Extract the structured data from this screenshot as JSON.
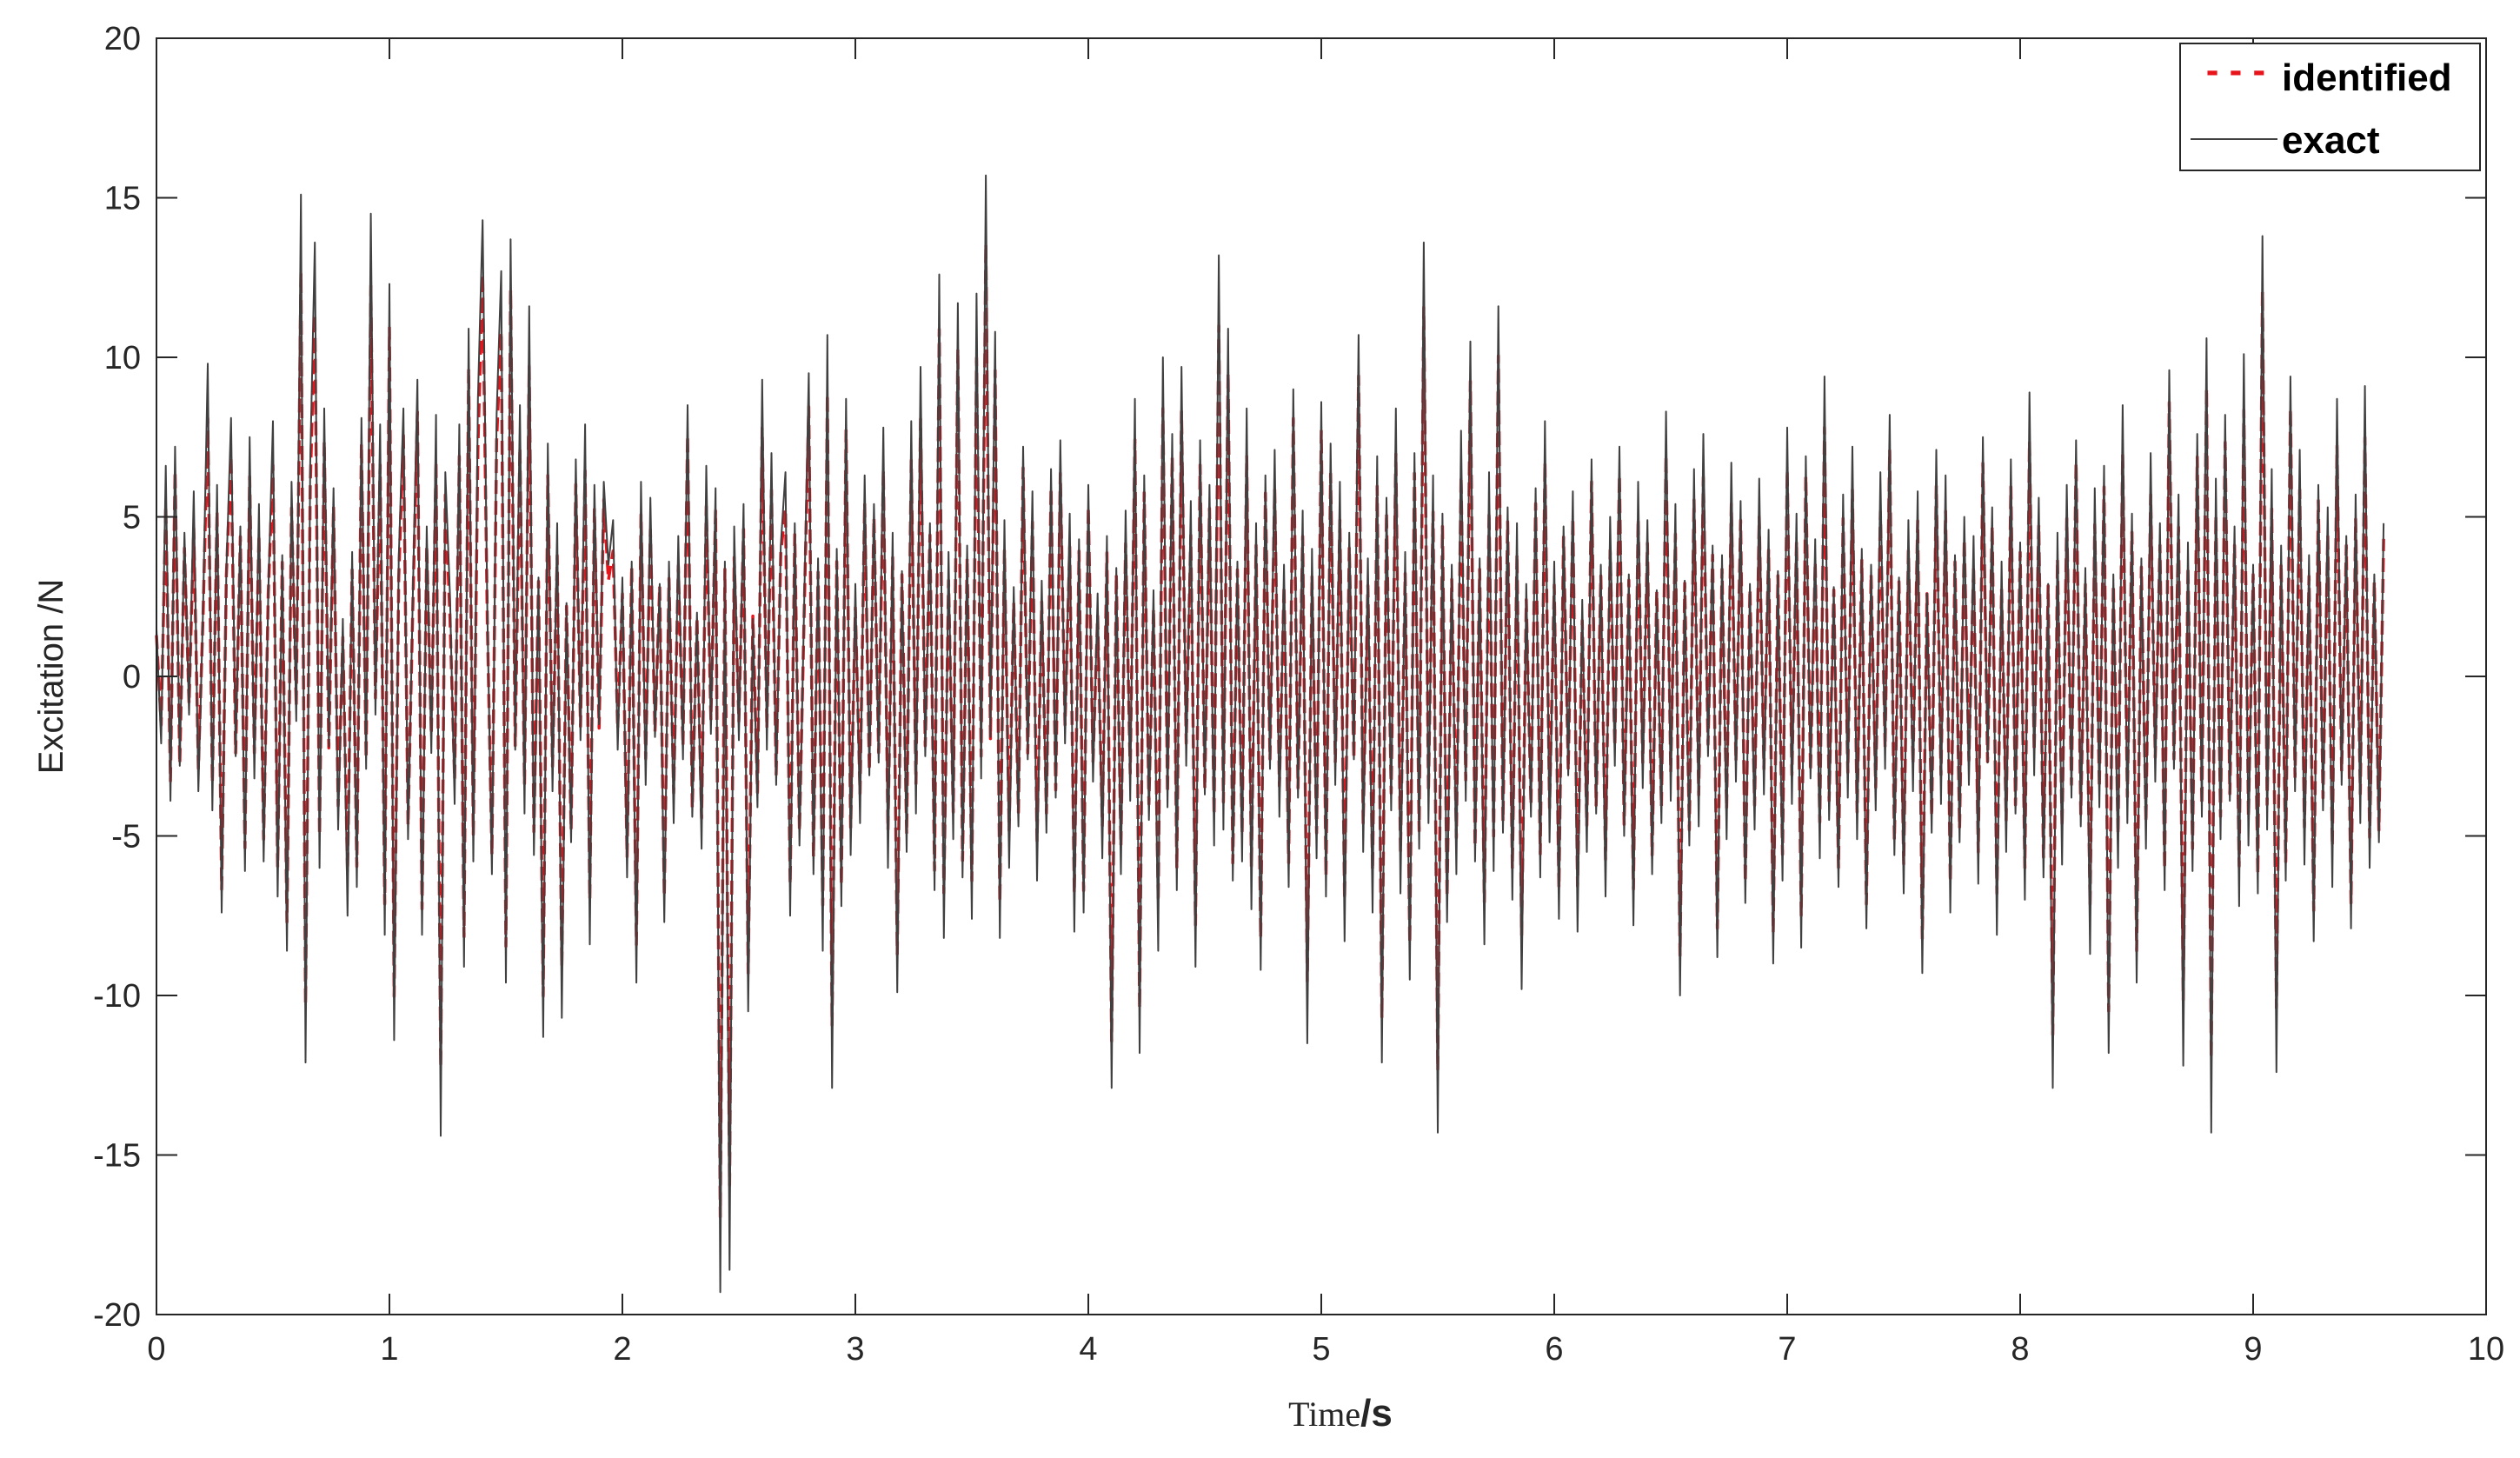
{
  "chart_data": {
    "type": "line",
    "title": "",
    "xlabel": {
      "part1": "Time",
      "part2": "/s"
    },
    "ylabel": "Excitation  /N",
    "xlim": [
      0,
      10
    ],
    "ylim": [
      -20,
      20
    ],
    "xticks": [
      0,
      1,
      2,
      3,
      4,
      5,
      6,
      7,
      8,
      9,
      10
    ],
    "yticks": [
      -20,
      -15,
      -10,
      -5,
      0,
      5,
      10,
      15,
      20
    ],
    "xtick_labels": [
      "0",
      "1",
      "2",
      "3",
      "4",
      "5",
      "6",
      "7",
      "8",
      "9",
      "10"
    ],
    "ytick_labels": [
      "-20",
      "-15",
      "-10",
      "-5",
      "0",
      "5",
      "10",
      "15",
      "20"
    ],
    "grid": false,
    "legend_position": "top-right",
    "series": [
      {
        "name": "exact",
        "color": "#404040",
        "style": "solid"
      },
      {
        "name": "identified",
        "color": "#e8141b",
        "style": "dashed"
      }
    ],
    "x": [
      0.0,
      0.02,
      0.04,
      0.06,
      0.08,
      0.1,
      0.12,
      0.14,
      0.16,
      0.18,
      0.2,
      0.22,
      0.24,
      0.26,
      0.28,
      0.3,
      0.32,
      0.34,
      0.36,
      0.38,
      0.4,
      0.42,
      0.44,
      0.46,
      0.48,
      0.5,
      0.52,
      0.54,
      0.56,
      0.58,
      0.6,
      0.62,
      0.64,
      0.66,
      0.68,
      0.7,
      0.72,
      0.74,
      0.76,
      0.78,
      0.8,
      0.82,
      0.84,
      0.86,
      0.88,
      0.9,
      0.92,
      0.94,
      0.96,
      0.98,
      1.0,
      1.02,
      1.04,
      1.06,
      1.08,
      1.1,
      1.12,
      1.14,
      1.16,
      1.18,
      1.2,
      1.22,
      1.24,
      1.26,
      1.28,
      1.3,
      1.32,
      1.34,
      1.36,
      1.38,
      1.4,
      1.42,
      1.44,
      1.46,
      1.48,
      1.5,
      1.52,
      1.54,
      1.56,
      1.58,
      1.6,
      1.62,
      1.64,
      1.66,
      1.68,
      1.7,
      1.72,
      1.74,
      1.76,
      1.78,
      1.8,
      1.82,
      1.84,
      1.86,
      1.88,
      1.9,
      1.92,
      1.94,
      1.96,
      1.98,
      2.0,
      2.02,
      2.04,
      2.06,
      2.08,
      2.1,
      2.12,
      2.14,
      2.16,
      2.18,
      2.2,
      2.22,
      2.24,
      2.26,
      2.28,
      2.3,
      2.32,
      2.34,
      2.36,
      2.38,
      2.4,
      2.42,
      2.44,
      2.46,
      2.48,
      2.5,
      2.52,
      2.54,
      2.56,
      2.58,
      2.6,
      2.62,
      2.64,
      2.66,
      2.68,
      2.7,
      2.72,
      2.74,
      2.76,
      2.78,
      2.8,
      2.82,
      2.84,
      2.86,
      2.88,
      2.9,
      2.92,
      2.94,
      2.96,
      2.98,
      3.0,
      3.02,
      3.04,
      3.06,
      3.08,
      3.1,
      3.12,
      3.14,
      3.16,
      3.18,
      3.2,
      3.22,
      3.24,
      3.26,
      3.28,
      3.3,
      3.32,
      3.34,
      3.36,
      3.38,
      3.4,
      3.42,
      3.44,
      3.46,
      3.48,
      3.5,
      3.52,
      3.54,
      3.56,
      3.58,
      3.6,
      3.62,
      3.64,
      3.66,
      3.68,
      3.7,
      3.72,
      3.74,
      3.76,
      3.78,
      3.8,
      3.82,
      3.84,
      3.86,
      3.88,
      3.9,
      3.92,
      3.94,
      3.96,
      3.98,
      4.0,
      4.02,
      4.04,
      4.06,
      4.08,
      4.1,
      4.12,
      4.14,
      4.16,
      4.18,
      4.2,
      4.22,
      4.24,
      4.26,
      4.28,
      4.3,
      4.32,
      4.34,
      4.36,
      4.38,
      4.4,
      4.42,
      4.44,
      4.46,
      4.48,
      4.5,
      4.52,
      4.54,
      4.56,
      4.58,
      4.6,
      4.62,
      4.64,
      4.66,
      4.68,
      4.7,
      4.72,
      4.74,
      4.76,
      4.78,
      4.8,
      4.82,
      4.84,
      4.86,
      4.88,
      4.9,
      4.92,
      4.94,
      4.96,
      4.98,
      5.0,
      5.02,
      5.04,
      5.06,
      5.08,
      5.1,
      5.12,
      5.14,
      5.16,
      5.18,
      5.2,
      5.22,
      5.24,
      5.26,
      5.28,
      5.3,
      5.32,
      5.34,
      5.36,
      5.38,
      5.4,
      5.42,
      5.44,
      5.46,
      5.48,
      5.5,
      5.52,
      5.54,
      5.56,
      5.58,
      5.6,
      5.62,
      5.64,
      5.66,
      5.68,
      5.7,
      5.72,
      5.74,
      5.76,
      5.78,
      5.8,
      5.82,
      5.84,
      5.86,
      5.88,
      5.9,
      5.92,
      5.94,
      5.96,
      5.98,
      6.0,
      6.02,
      6.04,
      6.06,
      6.08,
      6.1,
      6.12,
      6.14,
      6.16,
      6.18,
      6.2,
      6.22,
      6.24,
      6.26,
      6.28,
      6.3,
      6.32,
      6.34,
      6.36,
      6.38,
      6.4,
      6.42,
      6.44,
      6.46,
      6.48,
      6.5,
      6.52,
      6.54,
      6.56,
      6.58,
      6.6,
      6.62,
      6.64,
      6.66,
      6.68,
      6.7,
      6.72,
      6.74,
      6.76,
      6.78,
      6.8,
      6.82,
      6.84,
      6.86,
      6.88,
      6.9,
      6.92,
      6.94,
      6.96,
      6.98,
      7.0,
      7.02,
      7.04,
      7.06,
      7.08,
      7.1,
      7.12,
      7.14,
      7.16,
      7.18,
      7.2,
      7.22,
      7.24,
      7.26,
      7.28,
      7.3,
      7.32,
      7.34,
      7.36,
      7.38,
      7.4,
      7.42,
      7.44,
      7.46,
      7.48,
      7.5,
      7.52,
      7.54,
      7.56,
      7.58,
      7.6,
      7.62,
      7.64,
      7.66,
      7.68,
      7.7,
      7.72,
      7.74,
      7.76,
      7.78,
      7.8,
      7.82,
      7.84,
      7.86,
      7.88,
      7.9,
      7.92,
      7.94,
      7.96,
      7.98,
      8.0,
      8.02,
      8.04,
      8.06,
      8.08,
      8.1,
      8.12,
      8.14,
      8.16,
      8.18,
      8.2,
      8.22,
      8.24,
      8.26,
      8.28,
      8.3,
      8.32,
      8.34,
      8.36,
      8.38,
      8.4,
      8.42,
      8.44,
      8.46,
      8.48,
      8.5,
      8.52,
      8.54,
      8.56,
      8.58,
      8.6,
      8.62,
      8.64,
      8.66,
      8.68,
      8.7,
      8.72,
      8.74,
      8.76,
      8.78,
      8.8,
      8.82,
      8.84,
      8.86,
      8.88,
      8.9,
      8.92,
      8.94,
      8.96,
      8.98,
      9.0,
      9.02,
      9.04,
      9.06,
      9.08,
      9.1,
      9.12,
      9.14,
      9.16,
      9.18,
      9.2,
      9.22,
      9.24,
      9.26,
      9.28,
      9.3,
      9.32,
      9.34,
      9.36,
      9.38,
      9.4,
      9.42,
      9.44,
      9.46,
      9.48,
      9.5,
      9.52,
      9.54,
      9.56,
      9.58,
      9.6,
      9.62,
      9.64,
      9.66,
      9.68,
      9.7,
      9.72,
      9.74,
      9.76,
      9.78,
      9.8,
      9.82,
      9.84,
      9.86,
      9.88,
      9.9,
      9.92,
      9.94,
      9.96,
      9.98,
      10.0
    ],
    "exact": [
      1.5,
      -2.1,
      6.6,
      -3.9,
      7.2,
      -2.8,
      4.5,
      -1.2,
      5.8,
      -3.6,
      2.1,
      9.8,
      -4.2,
      6.0,
      -7.4,
      3.3,
      8.1,
      -2.5,
      4.7,
      -6.1,
      7.5,
      -3.2,
      5.4,
      -5.8,
      2.6,
      8.0,
      -6.9,
      3.8,
      -8.6,
      6.1,
      -1.4,
      15.1,
      -12.1,
      6.7,
      13.6,
      -6.0,
      8.4,
      -2.2,
      5.9,
      -4.8,
      1.8,
      -7.5,
      3.9,
      -6.6,
      8.1,
      -2.9,
      14.5,
      -1.2,
      7.9,
      -8.1,
      12.3,
      -11.4,
      3.7,
      8.4,
      -5.1,
      2.4,
      9.3,
      -8.1,
      4.7,
      -2.4,
      8.2,
      -14.4,
      6.4,
      2.5,
      -4.0,
      7.9,
      -9.1,
      10.9,
      -5.8,
      8.7,
      14.3,
      2.1,
      -6.2,
      8.2,
      12.7,
      -9.6,
      13.7,
      -2.3,
      8.5,
      -4.3,
      11.6,
      -5.6,
      3.1,
      -11.3,
      7.3,
      -3.6,
      4.8,
      -10.7,
      2.3,
      -5.2,
      6.8,
      -2.0,
      7.9,
      -8.4,
      6.0,
      -1.5,
      6.1,
      3.5,
      4.9,
      -2.3,
      3.1,
      -6.3,
      3.6,
      -9.6,
      6.1,
      -3.4,
      5.6,
      -1.9,
      2.9,
      -7.7,
      3.6,
      -4.6,
      4.4,
      -2.6,
      8.5,
      -4.4,
      2.0,
      -5.4,
      6.6,
      -1.8,
      5.9,
      -19.3,
      3.6,
      -18.6,
      4.7,
      -2.0,
      5.4,
      -10.5,
      1.8,
      -4.1,
      9.3,
      -2.3,
      7.0,
      -3.4,
      4.1,
      6.4,
      -7.5,
      4.8,
      -5.3,
      2.1,
      9.5,
      -6.2,
      3.7,
      -8.6,
      10.7,
      -12.9,
      4.0,
      -7.2,
      8.7,
      -5.6,
      2.9,
      -4.6,
      6.3,
      -3.1,
      5.4,
      -2.7,
      7.8,
      -6.0,
      4.5,
      -9.9,
      3.3,
      -5.5,
      8.0,
      -4.3,
      9.7,
      -2.5,
      4.8,
      -6.7,
      12.6,
      -8.2,
      3.9,
      -5.1,
      11.7,
      -6.3,
      4.1,
      -7.6,
      12.0,
      -3.2,
      15.7,
      -1.9,
      10.8,
      -8.2,
      4.9,
      -6.0,
      2.8,
      -4.7,
      7.2,
      -2.6,
      5.8,
      -6.4,
      3.0,
      -4.9,
      6.5,
      -3.8,
      7.4,
      -2.1,
      5.1,
      -8.0,
      4.3,
      -7.4,
      6.0,
      -3.3,
      2.6,
      -5.7,
      4.4,
      -12.9,
      3.4,
      -6.2,
      5.2,
      -3.9,
      8.7,
      -11.8,
      6.3,
      -4.5,
      2.7,
      -8.6,
      10.0,
      -4.1,
      7.6,
      -6.7,
      9.7,
      -2.8,
      5.5,
      -9.1,
      7.4,
      -3.7,
      6.0,
      -5.3,
      13.2,
      -4.8,
      10.9,
      -6.4,
      3.6,
      -5.8,
      8.4,
      -7.3,
      4.8,
      -9.2,
      6.3,
      -2.9,
      7.1,
      -4.4,
      3.5,
      -6.6,
      9.0,
      -3.8,
      5.2,
      -11.5,
      4.0,
      -5.7,
      8.6,
      -6.9,
      7.3,
      -3.4,
      6.1,
      -8.3,
      4.5,
      -2.6,
      10.7,
      -5.5,
      3.7,
      -7.4,
      6.9,
      -12.1,
      5.6,
      -4.2,
      8.4,
      -6.8,
      3.9,
      -9.5,
      7.0,
      -5.4,
      13.6,
      -4.6,
      6.3,
      -14.3,
      5.1,
      -7.7,
      3.5,
      -6.2,
      7.7,
      -3.9,
      10.5,
      -5.8,
      3.7,
      -8.4,
      6.4,
      -6.1,
      11.6,
      -4.9,
      5.3,
      -7.0,
      4.8,
      -9.8,
      2.9,
      -4.4,
      5.9,
      -6.3,
      8.0,
      -5.2,
      3.6,
      -7.6,
      4.7,
      -3.1,
      5.8,
      -8.0,
      2.4,
      -5.5,
      6.8,
      -4.3,
      3.5,
      -6.9,
      5.0,
      -2.8,
      7.2,
      -5.0,
      3.2,
      -7.8,
      6.1,
      -3.5,
      4.9,
      -6.2,
      2.7,
      -4.6,
      8.3,
      -3.9,
      5.4,
      -10.0,
      3.0,
      -5.3,
      6.5,
      -4.7,
      7.6,
      -2.5,
      4.1,
      -8.8,
      3.8,
      -5.1,
      6.7,
      -3.3,
      5.5,
      -7.1,
      2.9,
      -4.8,
      6.2,
      -3.7,
      4.6,
      -9.0,
      3.3,
      -6.4,
      7.8,
      -4.0,
      5.1,
      -8.5,
      6.9,
      -3.2,
      4.3,
      -5.7,
      9.4,
      -4.5,
      2.8,
      -6.6,
      5.7,
      -3.8,
      7.2,
      -5.1,
      4.0,
      -7.9,
      3.5,
      -4.2,
      6.4,
      -2.9,
      8.2,
      -5.6,
      3.1,
      -6.8,
      4.9,
      -3.6,
      5.8,
      -9.3,
      2.6,
      -4.9,
      7.1,
      -4.0,
      6.3,
      -7.4,
      3.8,
      -5.2,
      5.0,
      -3.4,
      4.4,
      -6.5,
      7.5,
      -2.7,
      5.3,
      -8.1,
      3.6,
      -5.5,
      6.8,
      -4.3,
      4.2,
      -7.0,
      8.9,
      -3.1,
      5.6,
      -6.3,
      2.9,
      -12.9,
      4.5,
      -5.9,
      6.0,
      -3.8,
      7.4,
      -4.7,
      3.4,
      -8.7,
      5.9,
      -4.1,
      6.6,
      -11.8,
      3.2,
      -6.0,
      8.5,
      -4.6,
      5.1,
      -9.6,
      3.7,
      -5.4,
      7.0,
      -3.3,
      4.8,
      -6.7,
      9.6,
      -2.9,
      5.7,
      -12.2,
      4.2,
      -6.1,
      7.6,
      -4.4,
      10.6,
      -14.3,
      6.2,
      -5.1,
      8.2,
      -3.9,
      4.7,
      -7.2,
      10.1,
      -5.3,
      3.5,
      -6.8,
      13.8,
      -4.8,
      6.5,
      -12.4,
      4.1,
      -6.4,
      9.4,
      -3.6,
      7.1,
      -5.9,
      3.8,
      -8.3,
      6.0,
      -4.2,
      5.3,
      -6.6,
      8.7,
      -3.4,
      4.4,
      -7.9,
      5.7,
      -4.6,
      9.1,
      -6.0,
      3.2,
      -5.2,
      4.8
    ]
  },
  "legend_sample_label": "- - -"
}
